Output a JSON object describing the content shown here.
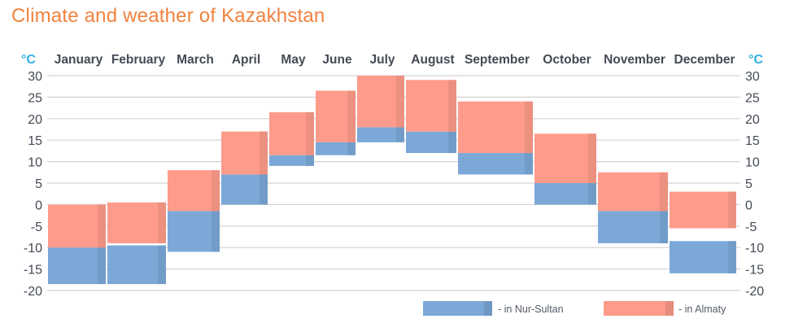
{
  "title": "Climate and weather of Kazakhstan",
  "colors": {
    "nur_sultan": "#7ca8d8",
    "almaty": "#ff9b8a",
    "overlap": "#8c5a5e",
    "title": "#f0823f",
    "unit": "#2fb0e0",
    "grid": "#d2d2d2"
  },
  "chart_data": {
    "type": "bar",
    "subtype": "floating-range",
    "title": "Climate and weather of Kazakhstan",
    "unit_label": "°C",
    "categories": [
      "January",
      "February",
      "March",
      "April",
      "May",
      "June",
      "July",
      "August",
      "September",
      "October",
      "November",
      "December"
    ],
    "ylim": [
      -20,
      30
    ],
    "yticks": [
      30,
      25,
      20,
      15,
      10,
      5,
      0,
      -5,
      -10,
      -15,
      -20
    ],
    "grid": true,
    "legend_position": "bottom-right",
    "series": [
      {
        "name": "- in Nur-Sultan",
        "color": "#7ca8d8",
        "ranges": [
          [
            -18.5,
            -10
          ],
          [
            -18.5,
            -9.5
          ],
          [
            -11,
            -1.5
          ],
          [
            0,
            7
          ],
          [
            9,
            11.5
          ],
          [
            11.5,
            14.5
          ],
          [
            14.5,
            18
          ],
          [
            12,
            17
          ],
          [
            7,
            12
          ],
          [
            0,
            5
          ],
          [
            -9,
            -1.5
          ],
          [
            -16,
            -8.5
          ]
        ]
      },
      {
        "name": "- in Almaty",
        "color": "#ff9b8a",
        "ranges": [
          [
            -10,
            0
          ],
          [
            -9,
            0.5
          ],
          [
            -1.5,
            8
          ],
          [
            7,
            17
          ],
          [
            11.5,
            21.5
          ],
          [
            14.5,
            26.5
          ],
          [
            18,
            30
          ],
          [
            17,
            29
          ],
          [
            12,
            24
          ],
          [
            5,
            16.5
          ],
          [
            -1.5,
            7.5
          ],
          [
            -5.5,
            3
          ]
        ]
      }
    ]
  }
}
